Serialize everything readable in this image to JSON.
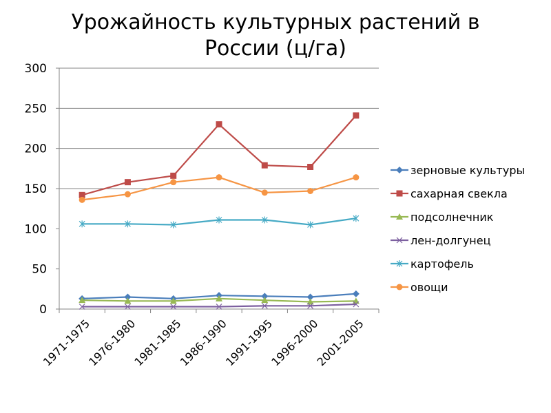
{
  "chart_data": {
    "type": "line",
    "title": "Урожайность культурных растений в России (ц/га)",
    "title_line1": "Урожайность культурных растений в",
    "title_line2": "России (ц/га)",
    "xlabel": "",
    "ylabel": "",
    "ylim": [
      0,
      300
    ],
    "yticks": [
      0,
      50,
      100,
      150,
      200,
      250,
      300
    ],
    "gridlines": [
      150,
      200,
      250,
      300
    ],
    "legend_position": "right",
    "categories": [
      "1971-1975",
      "1976-1980",
      "1981-1985",
      "1986-1990",
      "1991-1995",
      "1996-2000",
      "2001-2005"
    ],
    "series": [
      {
        "name": "зерновые культуры",
        "color": "#4a7ebb",
        "marker": "diamond",
        "values": [
          13,
          15,
          13,
          17,
          16,
          15,
          19
        ]
      },
      {
        "name": "сахарная свекла",
        "color": "#be4b48",
        "marker": "square",
        "values": [
          142,
          158,
          166,
          230,
          179,
          177,
          241
        ]
      },
      {
        "name": "подсолнечник",
        "color": "#98b954",
        "marker": "triangle",
        "values": [
          11,
          10,
          10,
          13,
          11,
          9,
          10
        ]
      },
      {
        "name": "лен-долгунец",
        "color": "#7d60a0",
        "marker": "x",
        "values": [
          3,
          3,
          3,
          3,
          4,
          4,
          6
        ]
      },
      {
        "name": "картофель",
        "color": "#46aac5",
        "marker": "star",
        "values": [
          106,
          106,
          105,
          111,
          111,
          105,
          113
        ]
      },
      {
        "name": "овощи",
        "color": "#f69544",
        "marker": "circle",
        "values": [
          136,
          143,
          158,
          164,
          145,
          147,
          164
        ]
      }
    ]
  }
}
